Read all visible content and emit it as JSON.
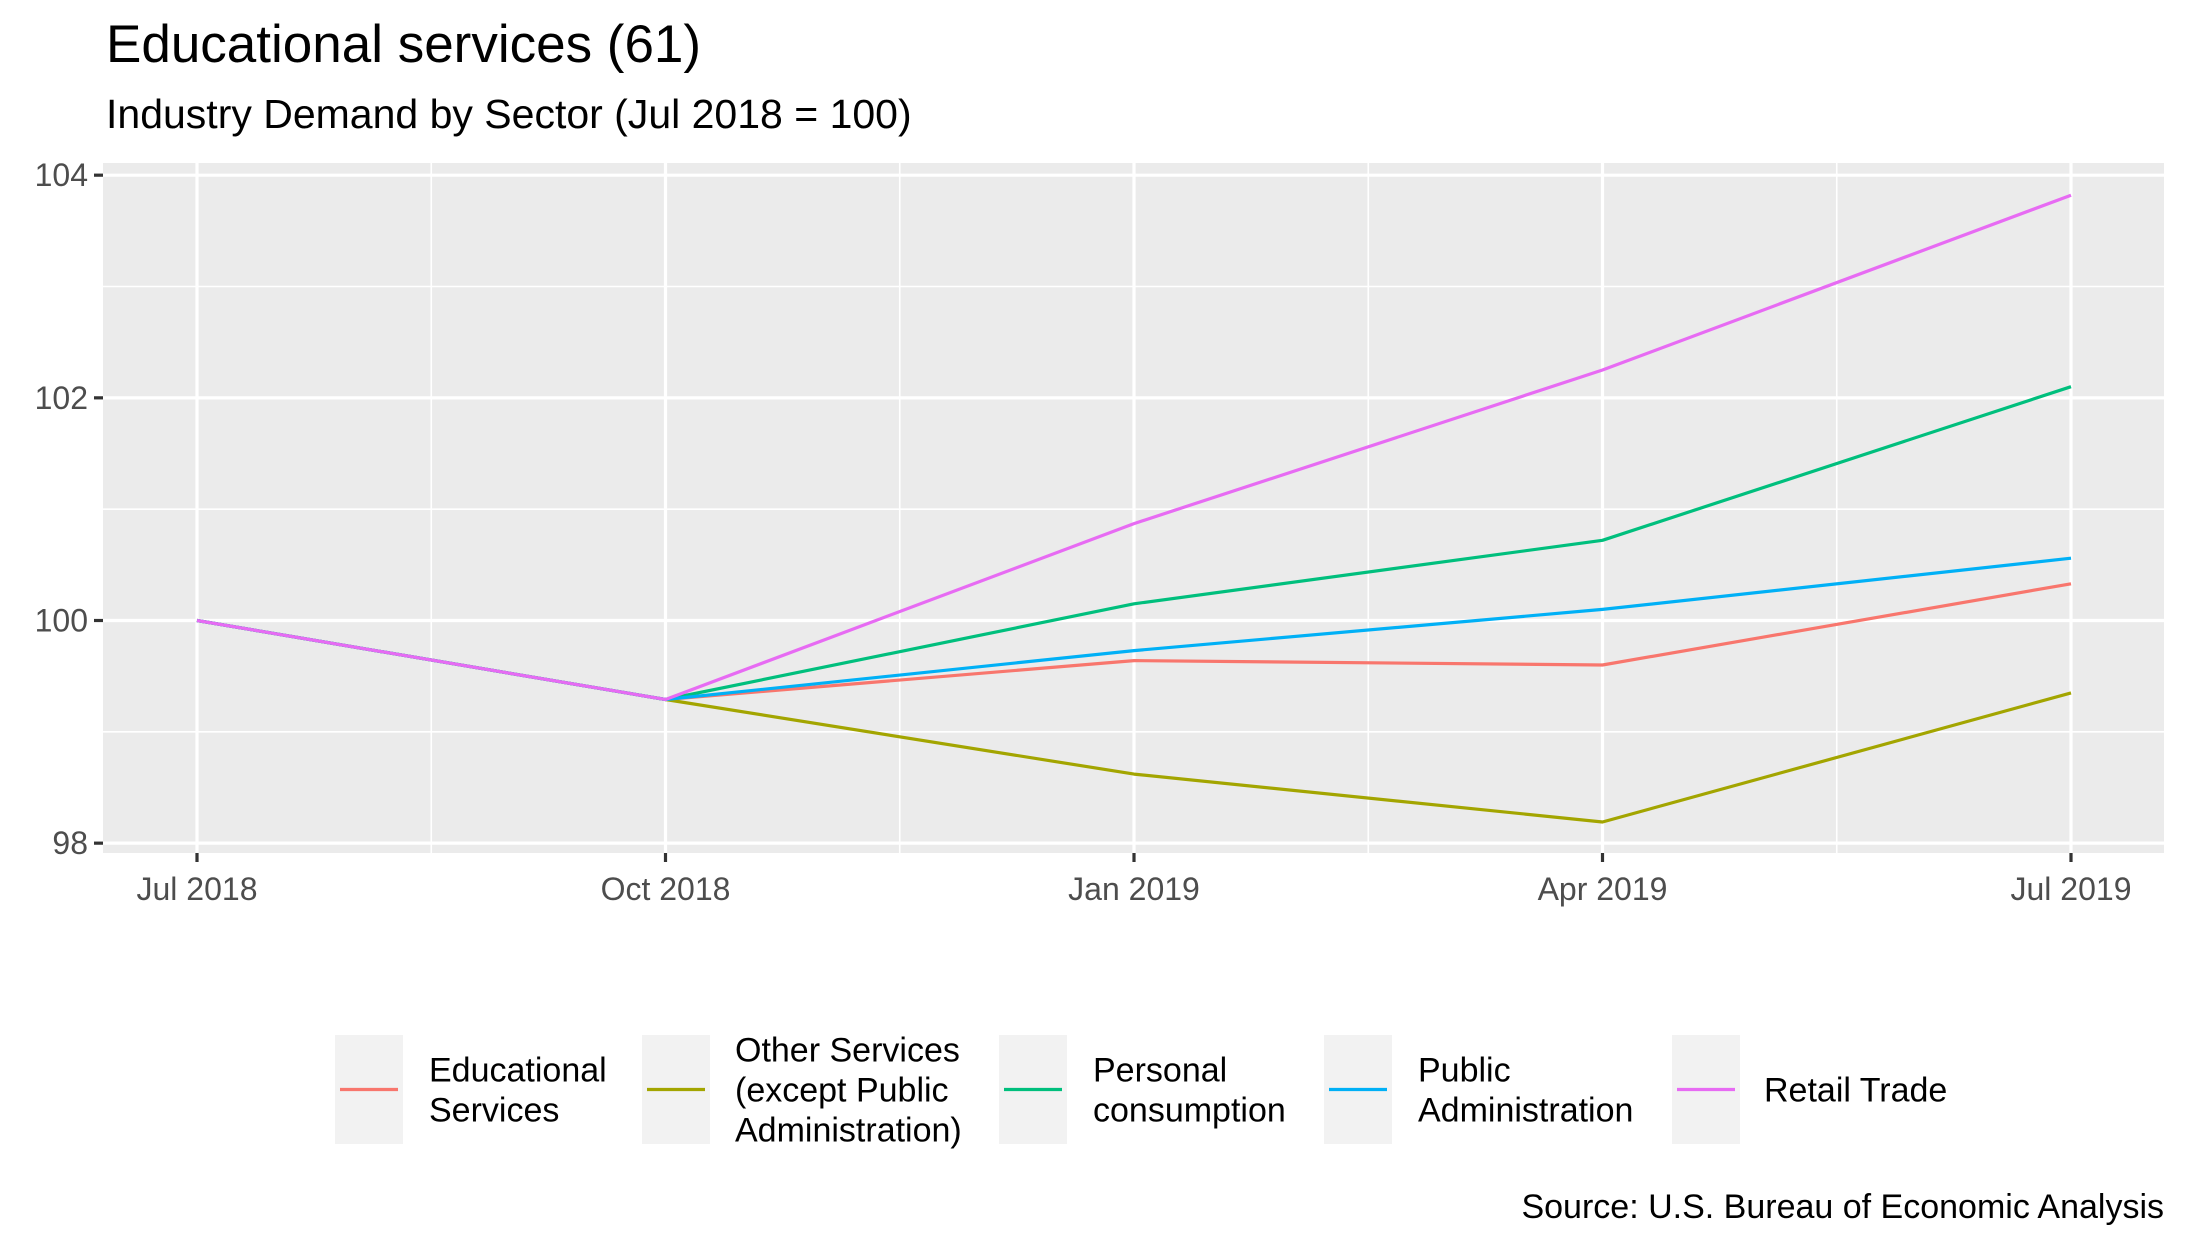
{
  "chart_data": {
    "type": "line",
    "title": "Educational services (61)",
    "subtitle": "Industry Demand by Sector (Jul 2018 = 100)",
    "caption": "Source: U.S. Bureau of Economic Analysis",
    "xlabel": "",
    "ylabel": "",
    "x": [
      "Jul 2018",
      "Oct 2018",
      "Jan 2019",
      "Apr 2019",
      "Jul 2019"
    ],
    "x_tick_labels": [
      "Jul 2018",
      "Oct 2018",
      "Jan 2019",
      "Apr 2019",
      "Jul 2019"
    ],
    "y_ticks": [
      98,
      100,
      102,
      104
    ],
    "y_tick_labels": [
      "98",
      "100",
      "102",
      "104"
    ],
    "ylim": [
      97.88,
      104.1
    ],
    "grid": true,
    "legend_position": "bottom",
    "series": [
      {
        "name": "Educational Services",
        "legend_lines": [
          "Educational",
          "Services"
        ],
        "color": "#F8766D",
        "values": [
          100,
          99.29,
          99.64,
          99.6,
          100.33
        ]
      },
      {
        "name": "Other Services (except Public Administration)",
        "legend_lines": [
          "Other Services",
          "(except Public",
          "Administration)"
        ],
        "color": "#A3A500",
        "values": [
          100,
          99.29,
          98.62,
          98.19,
          99.35
        ]
      },
      {
        "name": "Personal consumption",
        "legend_lines": [
          "Personal",
          "consumption"
        ],
        "color": "#00BF7D",
        "values": [
          100,
          99.29,
          100.15,
          100.72,
          102.1
        ]
      },
      {
        "name": "Public Administration",
        "legend_lines": [
          "Public",
          "Administration"
        ],
        "color": "#00B0F6",
        "values": [
          100,
          99.29,
          99.73,
          100.1,
          100.56
        ]
      },
      {
        "name": "Retail Trade",
        "legend_lines": [
          "Retail Trade"
        ],
        "color": "#E76BF3",
        "values": [
          100,
          99.29,
          100.87,
          102.25,
          103.82
        ]
      }
    ]
  }
}
